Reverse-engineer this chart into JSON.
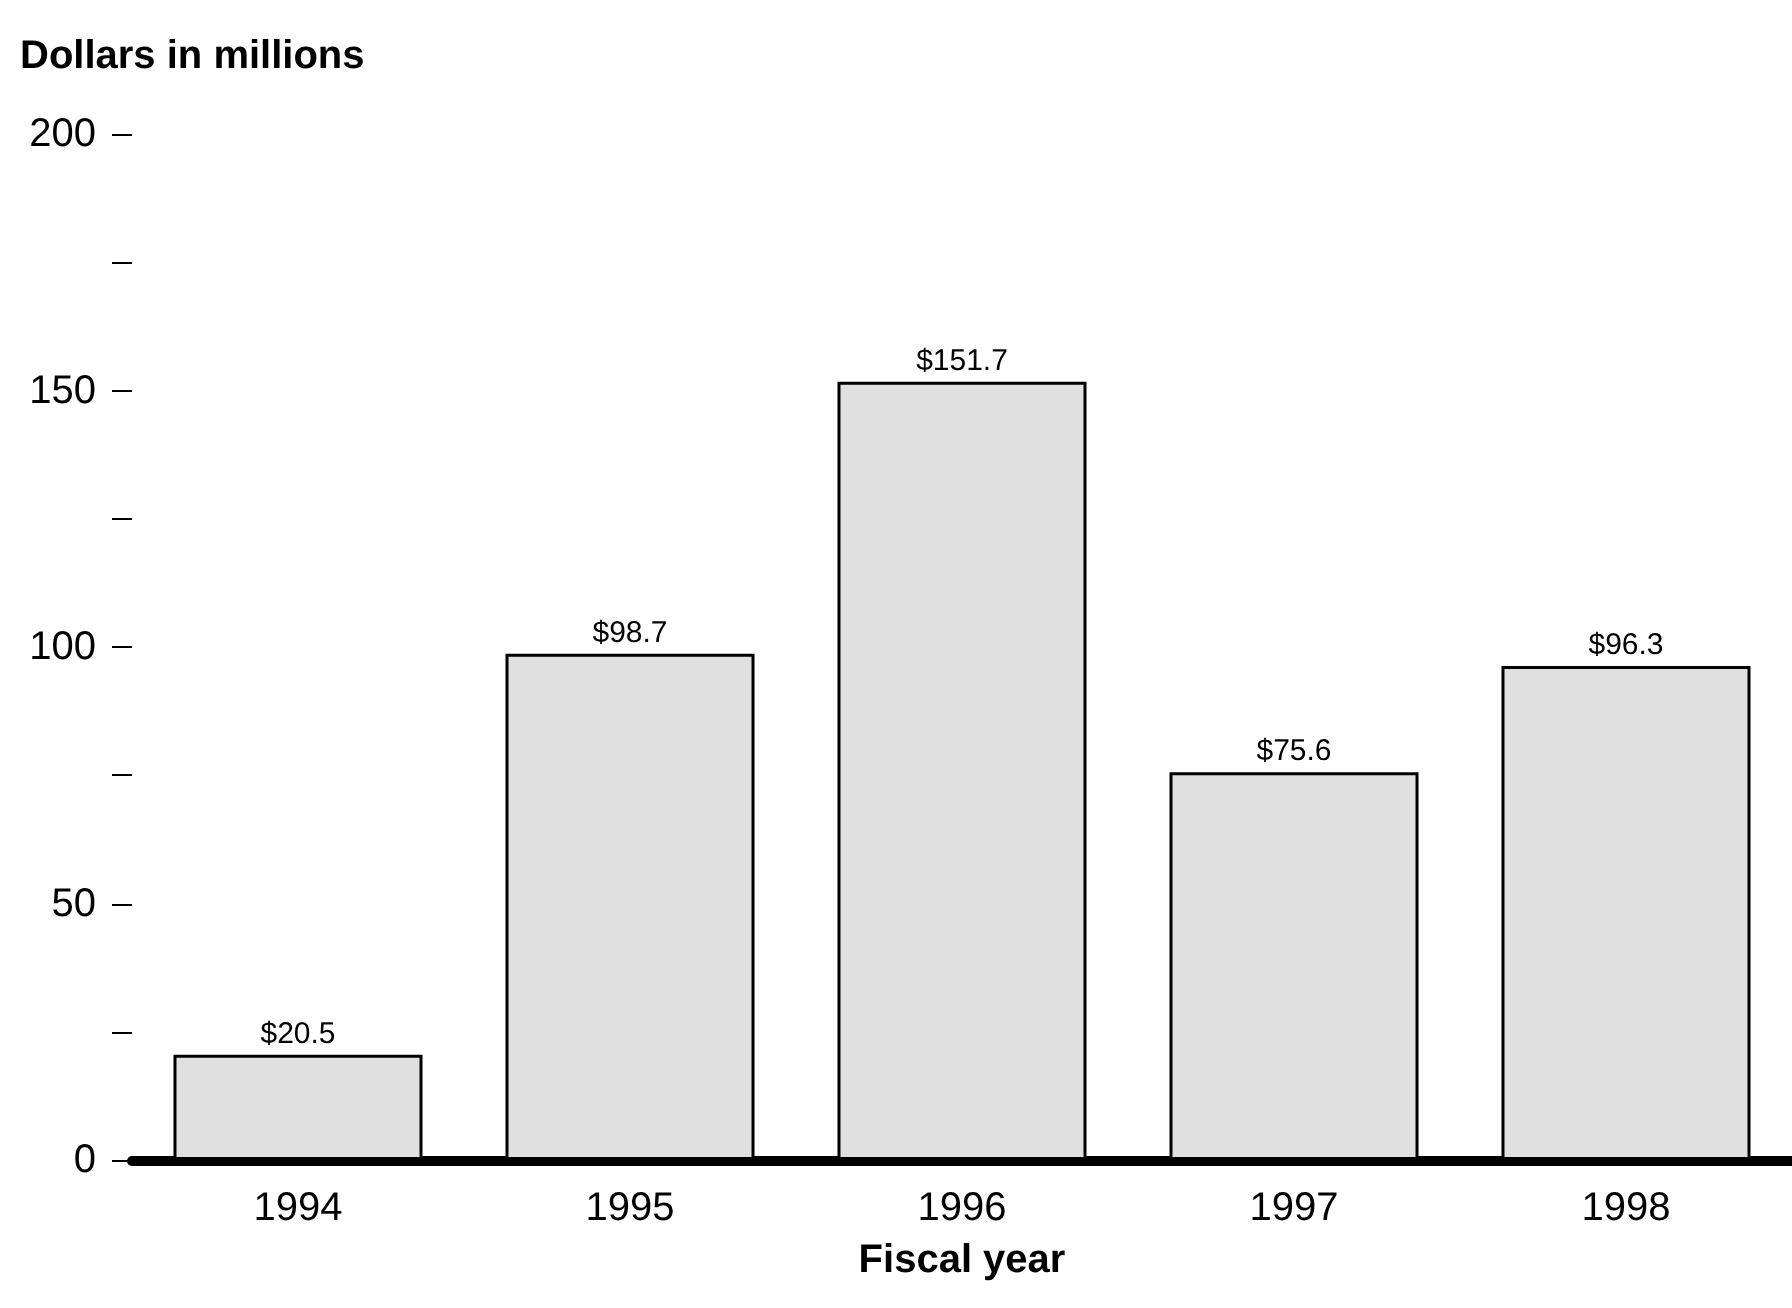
{
  "chart_data": {
    "type": "bar",
    "ylabel": "Dollars in millions",
    "xlabel": "Fiscal year",
    "categories": [
      "1994",
      "1995",
      "1996",
      "1997",
      "1998"
    ],
    "values": [
      20.5,
      98.7,
      151.7,
      75.6,
      96.3
    ],
    "value_labels": [
      "$20.5",
      "$98.7",
      "$151.7",
      "$75.6",
      "$96.3"
    ],
    "color": "#e0e0e0",
    "ylim": [
      0,
      200
    ],
    "yticks": [
      0,
      {
        "value": 25,
        "label": null
      },
      50,
      {
        "value": 75,
        "label": null
      },
      100,
      {
        "value": 125,
        "label": null
      },
      150,
      {
        "value": 175,
        "label": null
      },
      200
    ],
    "grid": false
  }
}
